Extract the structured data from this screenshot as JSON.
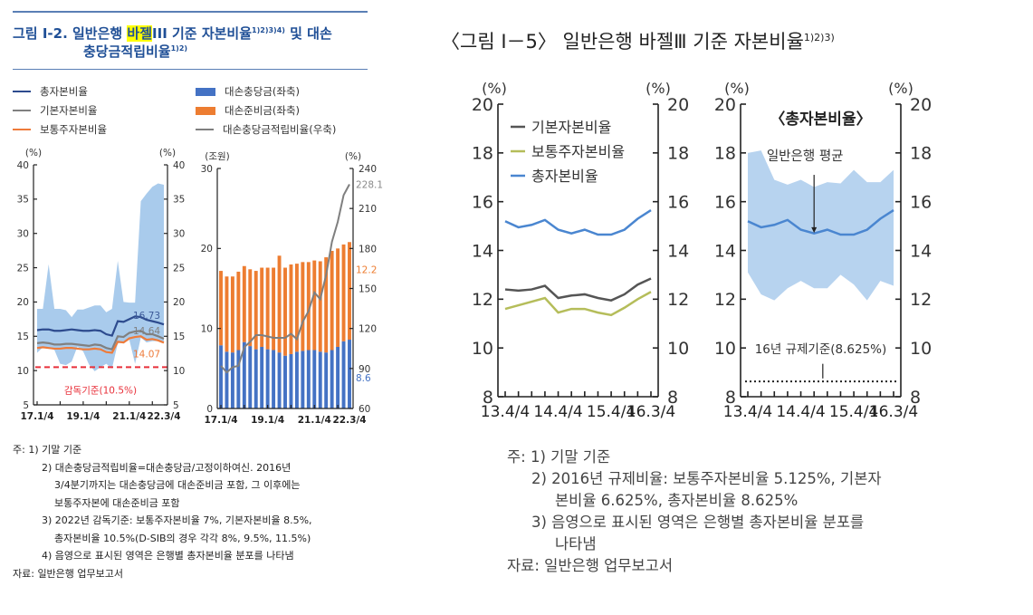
{
  "left_figure": {
    "title_prefix": "그림 Ⅰ-2. 일반은행 ",
    "title_highlight": "바젤",
    "title_rest": "III 기준 자본비율",
    "title_sup1": "1)2)3)4)",
    "title_end": " 및 대손",
    "title_line2": "충당금적립비율",
    "title_sup2": "1)2)",
    "legend": [
      {
        "label": "총자본비율",
        "color": "#2d4b8e",
        "kind": "line"
      },
      {
        "label": "기본자본비율",
        "color": "#808080",
        "kind": "line"
      },
      {
        "label": "보통주자본비율",
        "color": "#ee7b3a",
        "kind": "line"
      },
      {
        "label": "대손충당금(좌축)",
        "color": "#4472c4",
        "kind": "box"
      },
      {
        "label": "대손준비금(좌축)",
        "color": "#ed7d31",
        "kind": "box"
      },
      {
        "label": "대손충당금적립비율(우축)",
        "color": "#7f7f7f",
        "kind": "line"
      }
    ],
    "notes": [
      "주: 1) 기말 기준",
      "2) 대손충당금적립비율=대손충당금/고정이하여신. 2016년",
      "3/4분기까지는 대손충당금에 대손준비금 포함, 그 이후에는",
      "보통주자본에 대손준비금 포함",
      "3) 2022년 감독기준: 보통주자본비율 7%, 기본자본비율 8.5%,",
      "총자본비율 10.5%(D-SIB의 경우 각각 8%, 9.5%, 11.5%)",
      "4) 음영으로 표시된 영역은 은행별 총자본비율 분포를 나타냄",
      "자료: 일반은행 업무보고서"
    ]
  },
  "right_figure": {
    "title": "〈그림 Ⅰ－5〉 일반은행 바젤Ⅲ 기준 자본비율",
    "title_sup": "1)2)3)",
    "notes": [
      "주: 1) 기말 기준",
      "2) 2016년  규제비율:  보통주자본비율  5.125%,  기본자",
      "본비율 6.625%, 총자본비율 8.625%",
      "3) 음영으로  표시된  영역은  은행별  총자본비율  분포를",
      "나타냄",
      "자료: 일반은행 업무보고서"
    ]
  },
  "chart_data": [
    {
      "type": "line",
      "id": "A",
      "yunit_left": "(%)",
      "yunit_right": "(%)",
      "ylim": [
        5,
        40
      ],
      "yticks": [
        5,
        10,
        15,
        20,
        25,
        30,
        35,
        40
      ],
      "xtick_labels": [
        "17.1/4",
        "19.1/4",
        "21.1/4",
        "22.3/4"
      ],
      "xtick_index": [
        0,
        8,
        16,
        22
      ],
      "band": {
        "color": "#a9cbec",
        "upper": [
          19,
          19,
          25.5,
          19,
          19,
          18.8,
          17.8,
          18.9,
          18.9,
          19.2,
          19.5,
          19.5,
          18.5,
          19,
          26,
          20,
          19.9,
          19.9,
          34.7,
          35.8,
          36.8,
          37.3,
          37.1
        ],
        "lower": [
          12.6,
          13.4,
          13.3,
          13,
          11,
          10.8,
          11.3,
          13.5,
          12.8,
          10.9,
          9.9,
          10.5,
          11,
          10.3,
          14,
          14,
          14.5,
          11,
          14.8,
          14.1,
          14.3,
          14.3,
          14.1
        ]
      },
      "series": [
        {
          "name": "총자본비율",
          "color": "#2d4b8e",
          "end_label": "16.73",
          "values": [
            15.9,
            16,
            16,
            15.8,
            15.8,
            15.9,
            16,
            15.9,
            15.8,
            15.8,
            15.9,
            15.8,
            15.3,
            15.1,
            17.2,
            17.1,
            17.5,
            17.9,
            17.8,
            17.4,
            17.2,
            17,
            16.73
          ]
        },
        {
          "name": "기본자본비율",
          "color": "#808080",
          "end_label": "14.64",
          "values": [
            14,
            14.1,
            14,
            13.8,
            13.8,
            13.9,
            13.9,
            13.8,
            13.7,
            13.6,
            13.8,
            13.7,
            13.3,
            13.1,
            15,
            14.9,
            15.5,
            15.7,
            15.8,
            15.3,
            15.3,
            15,
            14.64
          ]
        },
        {
          "name": "보통주자본비율",
          "color": "#ee7b3a",
          "end_label": "14.07",
          "values": [
            13.3,
            13.4,
            13.3,
            13.2,
            13.2,
            13.3,
            13.3,
            13.2,
            13.1,
            13.1,
            13.2,
            13.1,
            12.7,
            12.6,
            14.2,
            14.1,
            14.7,
            14.9,
            15,
            14.5,
            14.6,
            14.4,
            14.07
          ]
        }
      ],
      "reference": {
        "value": 10.5,
        "label": "감독기준(10.5%)",
        "color": "#e8303a"
      }
    },
    {
      "type": "bar",
      "id": "B",
      "yunit_left": "(조원)",
      "yunit_right": "(%)",
      "ylim": [
        0,
        30
      ],
      "yticks": [
        0,
        10,
        20,
        30
      ],
      "y2lim": [
        60,
        240
      ],
      "y2ticks": [
        60,
        90,
        120,
        150,
        180,
        210,
        240
      ],
      "xtick_labels": [
        "17.1/4",
        "19.1/4",
        "21.1/4",
        "22.3/4"
      ],
      "xtick_index": [
        0,
        8,
        16,
        22
      ],
      "series": [
        {
          "name": "대손충당금(좌축)",
          "color": "#4472c4",
          "end_label": "8.6",
          "values": [
            7.9,
            7.1,
            7,
            7.3,
            8.3,
            7.8,
            7.4,
            7.7,
            7.4,
            7.3,
            7,
            6.6,
            6.8,
            7.1,
            7.2,
            7.3,
            7.3,
            7.1,
            7,
            7.3,
            7.7,
            8.4,
            8.6
          ]
        },
        {
          "name": "대손준비금(좌축)",
          "color": "#ed7d31",
          "end_label": "12.2",
          "values": [
            9.3,
            9.4,
            9.5,
            9.8,
            9.5,
            9.6,
            9.8,
            9.9,
            10.2,
            10.3,
            12.1,
            11,
            11.2,
            11,
            11.1,
            11,
            11.2,
            11.3,
            11.9,
            12.4,
            12.3,
            12.1,
            12.2
          ]
        },
        {
          "name": "대손충당금적립비율(우축)",
          "color": "#7f7f7f",
          "axis": "right",
          "end_label": "228.1",
          "values": [
            92,
            87,
            91,
            92,
            106,
            110,
            115,
            115,
            114,
            113,
            113,
            113,
            116,
            112,
            125,
            133,
            147,
            142,
            160,
            185,
            200,
            220,
            228.1
          ]
        }
      ]
    },
    {
      "type": "line",
      "id": "C",
      "yunit_left": "(%)",
      "yunit_right": "(%)",
      "ylim": [
        8,
        20
      ],
      "yticks": [
        8,
        10,
        12,
        14,
        16,
        18,
        20
      ],
      "xtick_labels": [
        "13.4/4",
        "14.4/4",
        "15.4/4",
        "16.3/4"
      ],
      "xtick_index": [
        0,
        4,
        8,
        11
      ],
      "series": [
        {
          "name": "기본자본비율",
          "color": "#555555",
          "values": [
            12.4,
            12.35,
            12.4,
            12.55,
            12.05,
            12.15,
            12.2,
            12.05,
            11.95,
            12.2,
            12.6,
            12.85
          ]
        },
        {
          "name": "보통주자본비율",
          "color": "#b5bd5a",
          "values": [
            11.6,
            11.75,
            11.9,
            12.05,
            11.45,
            11.6,
            11.6,
            11.45,
            11.35,
            11.65,
            12,
            12.3
          ]
        },
        {
          "name": "총자본비율",
          "color": "#4a86d0",
          "values": [
            15.2,
            14.95,
            15.05,
            15.25,
            14.85,
            14.7,
            14.85,
            14.65,
            14.65,
            14.85,
            15.3,
            15.65
          ]
        }
      ]
    },
    {
      "type": "area",
      "id": "D",
      "title": "〈총자본비율〉",
      "yunit_left": "(%)",
      "yunit_right": "(%)",
      "ylim": [
        8,
        20
      ],
      "yticks": [
        8,
        10,
        12,
        14,
        16,
        18,
        20
      ],
      "xtick_labels": [
        "13.4/4",
        "14.4/4",
        "15.4/4",
        "16.3/4"
      ],
      "xtick_index": [
        0,
        4,
        8,
        11
      ],
      "band": {
        "color": "#b7d3ef",
        "upper": [
          18,
          18.1,
          16.9,
          16.7,
          16.9,
          16.6,
          16.8,
          16.75,
          17.3,
          16.8,
          16.8,
          17.3
        ],
        "lower": [
          13.1,
          12.2,
          11.95,
          12.45,
          12.75,
          12.45,
          12.45,
          13,
          12.6,
          11.95,
          12.75,
          12.55
        ]
      },
      "series": [
        {
          "name": "총자본비율",
          "color": "#4a86d0",
          "values": [
            15.2,
            14.95,
            15.05,
            15.25,
            14.85,
            14.7,
            14.85,
            14.65,
            14.65,
            14.85,
            15.3,
            15.65
          ]
        }
      ],
      "annotation": {
        "label": "일반은행 평균",
        "index": 5
      },
      "reference": {
        "value": 8.625,
        "label": "16년 규제기준(8.625%)",
        "color": "#222222"
      }
    }
  ]
}
